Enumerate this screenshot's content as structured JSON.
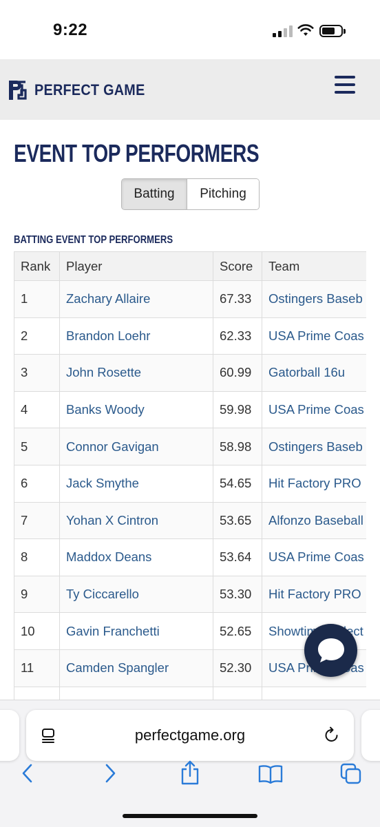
{
  "status": {
    "time": "9:22"
  },
  "header": {
    "brand": "PERFECT GAME"
  },
  "page": {
    "title": "EVENT TOP PERFORMERS",
    "toggle": {
      "batting": "Batting",
      "pitching": "Pitching"
    },
    "section_title": "BATTING EVENT TOP PERFORMERS"
  },
  "table": {
    "headers": {
      "rank": "Rank",
      "player": "Player",
      "score": "Score",
      "team": "Team"
    },
    "rows": [
      {
        "rank": "1",
        "player": "Zachary Allaire",
        "score": "67.33",
        "team": "Ostingers Baseb"
      },
      {
        "rank": "2",
        "player": "Brandon Loehr",
        "score": "62.33",
        "team": "USA Prime Coas"
      },
      {
        "rank": "3",
        "player": "John Rosette",
        "score": "60.99",
        "team": "Gatorball 16u"
      },
      {
        "rank": "4",
        "player": "Banks Woody",
        "score": "59.98",
        "team": "USA Prime Coas"
      },
      {
        "rank": "5",
        "player": "Connor Gavigan",
        "score": "58.98",
        "team": "Ostingers Baseb"
      },
      {
        "rank": "6",
        "player": "Jack Smythe",
        "score": "54.65",
        "team": "Hit Factory PRO"
      },
      {
        "rank": "7",
        "player": "Yohan X Cintron",
        "score": "53.65",
        "team": "Alfonzo Baseball"
      },
      {
        "rank": "8",
        "player": "Maddox Deans",
        "score": "53.64",
        "team": "USA Prime Coas"
      },
      {
        "rank": "9",
        "player": "Ty Ciccarello",
        "score": "53.30",
        "team": "Hit Factory PRO"
      },
      {
        "rank": "10",
        "player": "Gavin Franchetti",
        "score": "52.65",
        "team": "Showtime Select"
      },
      {
        "rank": "11",
        "player": "Camden Spangler",
        "score": "52.30",
        "team": "USA Prime Coas"
      },
      {
        "rank": "",
        "player": "",
        "score": "",
        "team": ""
      }
    ]
  },
  "browser": {
    "url": "perfectgame.org"
  },
  "icons": {
    "reader": "reader-mode-icon",
    "reload": "reload-icon",
    "back": "chevron-left-icon",
    "forward": "chevron-right-icon",
    "share": "share-icon",
    "bookmarks": "book-icon",
    "tabs": "tabs-icon",
    "chat": "chat-bubble-icon"
  },
  "colors": {
    "brand_navy": "#1b2a5c",
    "link": "#2b5a8c",
    "chat": "#1b2a4a"
  }
}
